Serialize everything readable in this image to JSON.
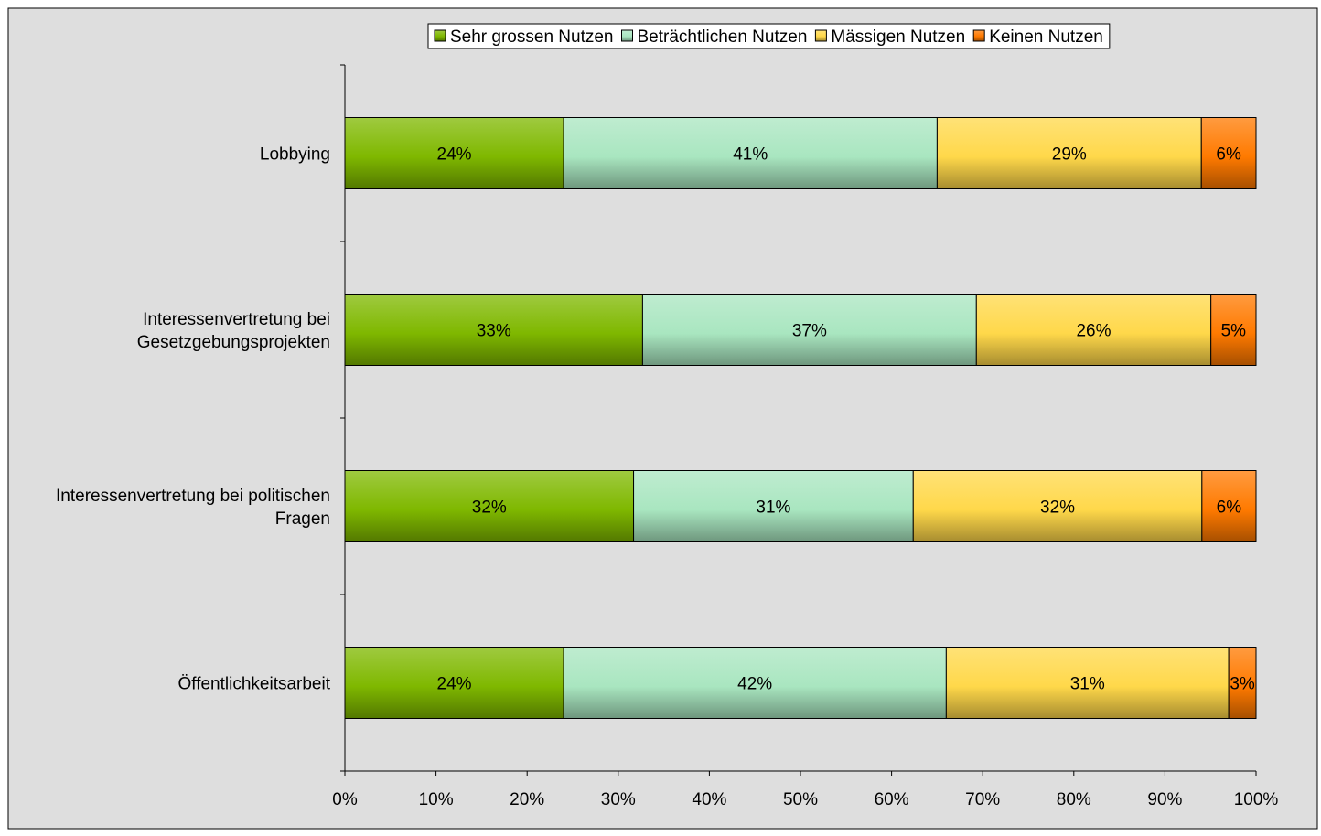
{
  "chart_data": {
    "type": "bar",
    "orientation": "horizontal",
    "stacked": true,
    "percent_stacked": true,
    "categories": [
      [
        "Lobbying"
      ],
      [
        "Interessenvertretung bei",
        "Gesetzgebungsprojekten"
      ],
      [
        "Interessenvertretung bei politischen",
        "Fragen"
      ],
      [
        "Öffentlichkeitsarbeit"
      ]
    ],
    "series": [
      {
        "name": "Sehr grossen Nutzen",
        "values": [
          24,
          33,
          32,
          24
        ],
        "labels": [
          "24%",
          "33%",
          "32%",
          "24%"
        ],
        "color": "#7fb800"
      },
      {
        "name": "Beträchtlichen Nutzen",
        "values": [
          41,
          37,
          31,
          42
        ],
        "labels": [
          "41%",
          "37%",
          "31%",
          "42%"
        ],
        "color": "#a9e6c0"
      },
      {
        "name": "Mässigen Nutzen",
        "values": [
          29,
          26,
          32,
          31
        ],
        "labels": [
          "29%",
          "26%",
          "32%",
          "31%"
        ],
        "color": "#ffd84a"
      },
      {
        "name": "Keinen Nutzen",
        "values": [
          6,
          5,
          6,
          3
        ],
        "labels": [
          "6%",
          "5%",
          "6%",
          "3%"
        ],
        "color": "#ff7a00"
      }
    ],
    "xlim": [
      0,
      100
    ],
    "xticks": [
      "0%",
      "10%",
      "20%",
      "30%",
      "40%",
      "50%",
      "60%",
      "70%",
      "80%",
      "90%",
      "100%"
    ],
    "grid": false,
    "legend_position": "top",
    "background": "#dedede"
  }
}
